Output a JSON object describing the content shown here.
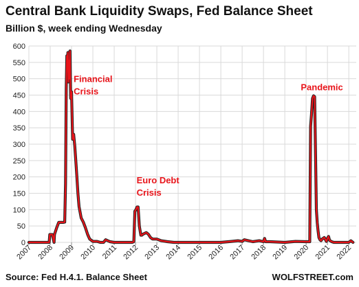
{
  "header": {
    "title": "Central Bank Liquidity Swaps, Fed Balance Sheet",
    "subtitle": "Billion $, week ending Wednesday"
  },
  "footer": {
    "source": "Source: Fed H.4.1. Balance Sheet",
    "brand": "WOLFSTREET.com"
  },
  "colors": {
    "series": "#e8141a",
    "shadow": "#222222",
    "grid": "#d9d9d9",
    "annotation": "#e8141a"
  },
  "chart_data": {
    "type": "line",
    "title": "Central Bank Liquidity Swaps, Fed Balance Sheet",
    "subtitle": "Billion $, week ending Wednesday",
    "xlabel": "",
    "ylabel": "",
    "xlim": [
      2007,
      2022.35
    ],
    "ylim": [
      0,
      600
    ],
    "y_ticks": [
      "0",
      "50",
      "100",
      "150",
      "200",
      "250",
      "300",
      "350",
      "400",
      "450",
      "500",
      "550",
      "600"
    ],
    "x_ticks": [
      "2007",
      "2008",
      "2009",
      "2010",
      "2011",
      "2012",
      "2013",
      "2014",
      "2015",
      "2016",
      "2017",
      "2018",
      "2019",
      "2020",
      "2021",
      "2022"
    ],
    "grid": true,
    "annotations": [
      {
        "lines": [
          "Financial",
          "Crisis"
        ],
        "x": 2009.1,
        "y": 490
      },
      {
        "lines": [
          "Euro Debt",
          "Crisis"
        ],
        "x": 2012.05,
        "y": 180
      },
      {
        "lines": [
          "Pandemic"
        ],
        "x": 2019.75,
        "y": 465
      }
    ],
    "series": [
      {
        "x": [
          2007.0,
          2007.95,
          2007.98,
          2008.1,
          2008.18,
          2008.2,
          2008.3,
          2008.4,
          2008.5,
          2008.6,
          2008.68,
          2008.72,
          2008.75,
          2008.78,
          2008.8,
          2008.83,
          2008.85,
          2008.88,
          2008.9,
          2008.93,
          2008.96,
          2009.0,
          2009.05,
          2009.1,
          2009.15,
          2009.2,
          2009.25,
          2009.3,
          2009.35,
          2009.45,
          2009.55,
          2009.65,
          2009.75,
          2009.85,
          2010.0,
          2010.2,
          2010.35,
          2010.5,
          2010.6,
          2010.8,
          2011.0,
          2011.5,
          2011.85,
          2011.92,
          2011.97,
          2012.02,
          2012.07,
          2012.12,
          2012.18,
          2012.25,
          2012.3,
          2012.35,
          2012.5,
          2012.6,
          2012.7,
          2012.8,
          2012.9,
          2013.0,
          2013.2,
          2013.5,
          2013.8,
          2014.0,
          2015.0,
          2016.0,
          2016.5,
          2016.8,
          2017.0,
          2017.1,
          2017.5,
          2017.8,
          2018.0,
          2018.05,
          2018.1,
          2018.3,
          2019.0,
          2019.5,
          2020.0,
          2020.17,
          2020.21,
          2020.25,
          2020.3,
          2020.35,
          2020.4,
          2020.45,
          2020.48,
          2020.52,
          2020.56,
          2020.6,
          2020.65,
          2020.7,
          2020.75,
          2020.85,
          2020.95,
          2021.0,
          2021.05,
          2021.1,
          2021.2,
          2021.3,
          2021.5,
          2022.0,
          2022.1,
          2022.2
        ],
        "values": [
          0,
          0,
          24,
          24,
          0,
          24,
          44,
          61,
          61,
          61,
          62,
          180,
          470,
          570,
          530,
          580,
          490,
          555,
          500,
          585,
          440,
          460,
          315,
          330,
          295,
          250,
          200,
          150,
          110,
          75,
          62,
          45,
          25,
          10,
          3,
          3,
          0,
          0,
          8,
          2,
          0,
          0,
          0,
          2,
          95,
          100,
          108,
          108,
          50,
          22,
          22,
          25,
          30,
          25,
          15,
          10,
          10,
          10,
          5,
          2,
          0,
          0,
          0,
          0,
          3,
          5,
          3,
          8,
          2,
          5,
          2,
          12,
          2,
          2,
          0,
          3,
          2,
          2,
          355,
          390,
          440,
          448,
          445,
          230,
          100,
          60,
          35,
          15,
          8,
          5,
          10,
          15,
          3,
          12,
          18,
          6,
          2,
          0,
          0,
          0,
          5,
          0
        ]
      }
    ]
  }
}
